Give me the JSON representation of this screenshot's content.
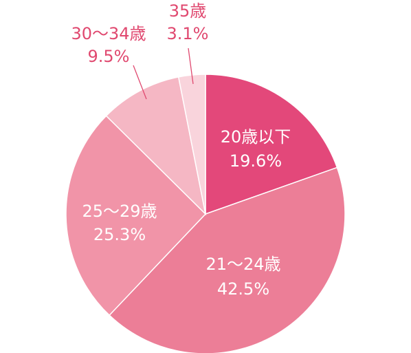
{
  "chart_data": {
    "type": "pie",
    "slices": [
      {
        "label": "20歳以下",
        "value_label": "19.6%",
        "value": 19.6,
        "color": "#e3487a"
      },
      {
        "label": "21～24歳",
        "value_label": "42.5%",
        "value": 42.5,
        "color": "#ec7e97"
      },
      {
        "label": "25～29歳",
        "value_label": "25.3%",
        "value": 25.3,
        "color": "#f194a8"
      },
      {
        "label": "30～34歳",
        "value_label": "9.5%",
        "value": 9.5,
        "color": "#f5b7c4"
      },
      {
        "label": "35歳",
        "value_label": "3.1%",
        "value": 3.1,
        "color": "#f9d4dc"
      }
    ],
    "start": "12 o'clock",
    "direction": "clockwise"
  },
  "colors": {
    "outside_label": "#e0486f",
    "inside_label": "#ffffff"
  }
}
